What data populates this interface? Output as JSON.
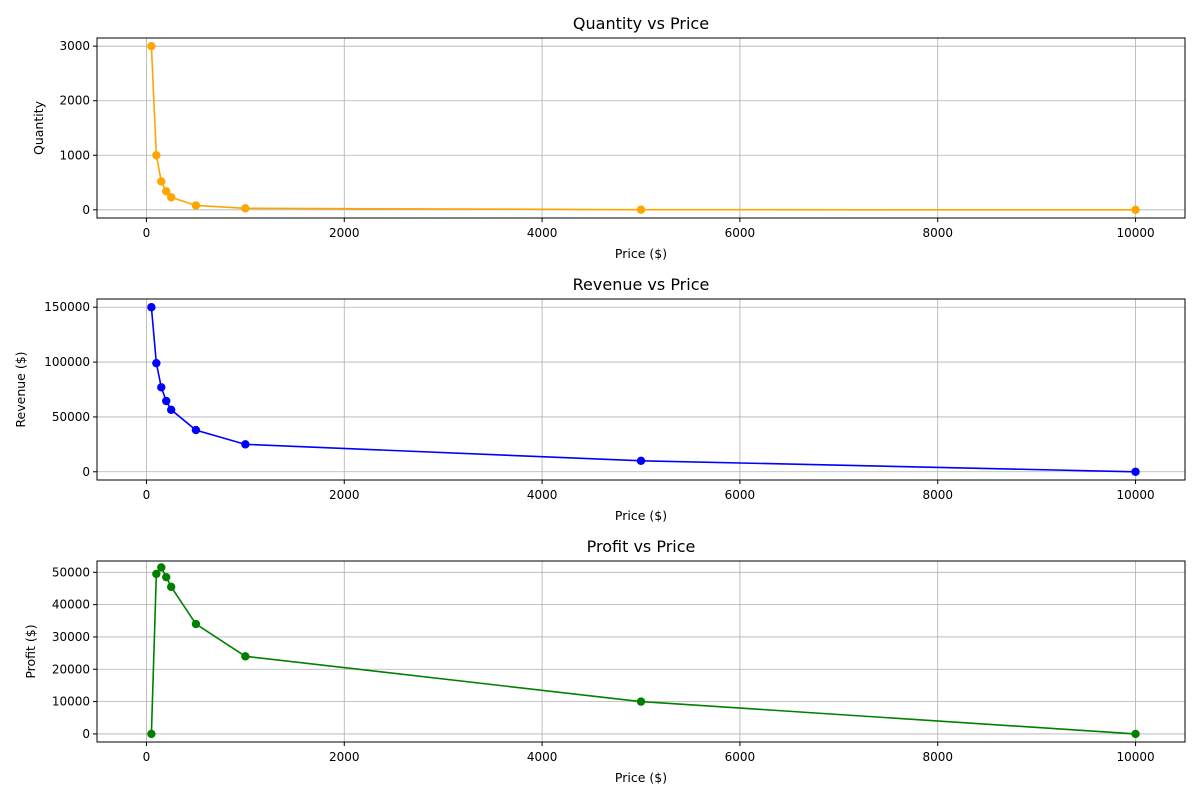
{
  "chart_data": [
    {
      "type": "line",
      "title": "Quantity vs Price",
      "xlabel": "Price ($)",
      "ylabel": "Quantity",
      "x": [
        50,
        100,
        150,
        200,
        250,
        500,
        1000,
        5000,
        10000
      ],
      "series": [
        {
          "values": [
            3000,
            1000,
            520,
            340,
            230,
            80,
            28,
            2,
            0
          ],
          "color": "#ffa500",
          "marker": "circle"
        }
      ],
      "xlim": [
        -500,
        10500
      ],
      "ylim": [
        -150,
        3150
      ],
      "xticks": [
        0,
        2000,
        4000,
        6000,
        8000,
        10000
      ],
      "yticks": [
        0,
        1000,
        2000,
        3000
      ],
      "grid": true
    },
    {
      "type": "line",
      "title": "Revenue vs Price",
      "xlabel": "Price ($)",
      "ylabel": "Revenue ($)",
      "x": [
        50,
        100,
        150,
        200,
        250,
        500,
        1000,
        5000,
        10000
      ],
      "series": [
        {
          "values": [
            150000,
            99000,
            77000,
            64500,
            56500,
            38000,
            25000,
            10000,
            0
          ],
          "color": "#0000ff",
          "marker": "circle"
        }
      ],
      "xlim": [
        -500,
        10500
      ],
      "ylim": [
        -7500,
        157500
      ],
      "xticks": [
        0,
        2000,
        4000,
        6000,
        8000,
        10000
      ],
      "yticks": [
        0,
        50000,
        100000,
        150000
      ],
      "grid": true
    },
    {
      "type": "line",
      "title": "Profit vs Price",
      "xlabel": "Price ($)",
      "ylabel": "Profit ($)",
      "x": [
        50,
        100,
        150,
        200,
        250,
        500,
        1000,
        5000,
        10000
      ],
      "series": [
        {
          "values": [
            0,
            49500,
            51500,
            48500,
            45500,
            34000,
            24000,
            10000,
            0
          ],
          "color": "#008000",
          "marker": "circle"
        }
      ],
      "xlim": [
        -500,
        10500
      ],
      "ylim": [
        -2500,
        53500
      ],
      "xticks": [
        0,
        2000,
        4000,
        6000,
        8000,
        10000
      ],
      "yticks": [
        0,
        10000,
        20000,
        30000,
        40000,
        50000
      ],
      "grid": true
    }
  ]
}
